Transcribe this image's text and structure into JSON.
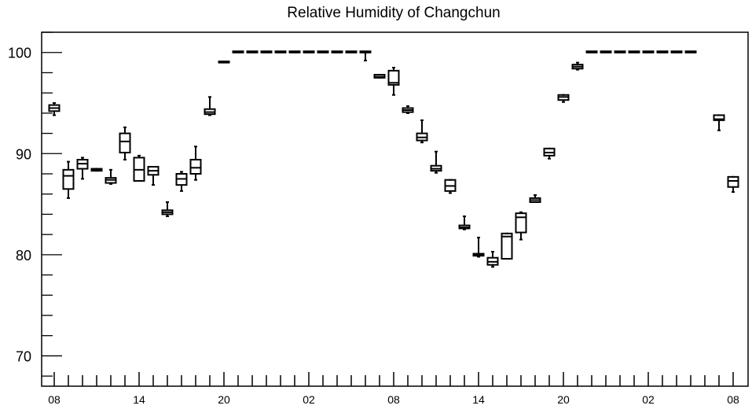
{
  "chart_data": {
    "type": "boxplot",
    "title": "Relative Humidity of Changchun",
    "xlabel": "",
    "ylabel": "",
    "ylim": [
      67,
      102
    ],
    "yticks": [
      70,
      80,
      90,
      100
    ],
    "xticklabels": [
      "08",
      "14",
      "20",
      "02",
      "08",
      "14",
      "20",
      "02",
      "08"
    ],
    "xtick_every": 6,
    "n_slots": 49,
    "grid": false,
    "boxes": [
      {
        "slot": 0,
        "min": 93.8,
        "q1": 94.2,
        "median": 94.5,
        "q3": 94.8,
        "max": 95.0
      },
      {
        "slot": 1,
        "min": 85.6,
        "q1": 86.5,
        "median": 87.8,
        "q3": 88.4,
        "max": 89.2
      },
      {
        "slot": 2,
        "min": 87.5,
        "q1": 88.5,
        "median": 89.0,
        "q3": 89.4,
        "max": 89.6
      },
      {
        "slot": 3,
        "min": 88.3,
        "q1": 88.3,
        "median": 88.4,
        "q3": 88.5,
        "max": 88.5
      },
      {
        "slot": 4,
        "min": 87.0,
        "q1": 87.1,
        "median": 87.4,
        "q3": 87.6,
        "max": 88.4
      },
      {
        "slot": 5,
        "min": 89.4,
        "q1": 90.1,
        "median": 91.2,
        "q3": 92.0,
        "max": 92.6
      },
      {
        "slot": 6,
        "min": 87.3,
        "q1": 87.3,
        "median": 88.4,
        "q3": 89.6,
        "max": 89.8
      },
      {
        "slot": 7,
        "min": 86.9,
        "q1": 87.9,
        "median": 88.3,
        "q3": 88.7,
        "max": 88.7
      },
      {
        "slot": 8,
        "min": 83.8,
        "q1": 84.0,
        "median": 84.2,
        "q3": 84.4,
        "max": 85.2
      },
      {
        "slot": 9,
        "min": 86.3,
        "q1": 86.9,
        "median": 87.5,
        "q3": 88.0,
        "max": 88.2
      },
      {
        "slot": 10,
        "min": 87.4,
        "q1": 88.0,
        "median": 88.6,
        "q3": 89.4,
        "max": 90.7
      },
      {
        "slot": 11,
        "min": 93.8,
        "q1": 93.9,
        "median": 94.1,
        "q3": 94.4,
        "max": 95.6
      },
      {
        "slot": 12,
        "min": 99.0,
        "q1": 99.0,
        "median": 99.0,
        "q3": 99.0,
        "max": 99.0
      },
      {
        "slot": 13,
        "min": 100.0,
        "q1": 100.0,
        "median": 100.0,
        "q3": 100.0,
        "max": 100.0
      },
      {
        "slot": 14,
        "min": 100.0,
        "q1": 100.0,
        "median": 100.0,
        "q3": 100.0,
        "max": 100.0
      },
      {
        "slot": 15,
        "min": 100.0,
        "q1": 100.0,
        "median": 100.0,
        "q3": 100.0,
        "max": 100.0
      },
      {
        "slot": 16,
        "min": 100.0,
        "q1": 100.0,
        "median": 100.0,
        "q3": 100.0,
        "max": 100.0
      },
      {
        "slot": 17,
        "min": 100.0,
        "q1": 100.0,
        "median": 100.0,
        "q3": 100.0,
        "max": 100.0
      },
      {
        "slot": 18,
        "min": 100.0,
        "q1": 100.0,
        "median": 100.0,
        "q3": 100.0,
        "max": 100.0
      },
      {
        "slot": 19,
        "min": 100.0,
        "q1": 100.0,
        "median": 100.0,
        "q3": 100.0,
        "max": 100.0
      },
      {
        "slot": 20,
        "min": 100.0,
        "q1": 100.0,
        "median": 100.0,
        "q3": 100.0,
        "max": 100.0
      },
      {
        "slot": 21,
        "min": 100.0,
        "q1": 100.0,
        "median": 100.0,
        "q3": 100.0,
        "max": 100.0
      },
      {
        "slot": 22,
        "min": 99.2,
        "q1": 100.0,
        "median": 100.0,
        "q3": 100.0,
        "max": 100.0
      },
      {
        "slot": 23,
        "min": 97.5,
        "q1": 97.5,
        "median": 97.6,
        "q3": 97.8,
        "max": 97.8
      },
      {
        "slot": 24,
        "min": 95.8,
        "q1": 96.8,
        "median": 97.0,
        "q3": 98.2,
        "max": 98.5
      },
      {
        "slot": 25,
        "min": 94.0,
        "q1": 94.1,
        "median": 94.3,
        "q3": 94.5,
        "max": 94.7
      },
      {
        "slot": 26,
        "min": 91.1,
        "q1": 91.3,
        "median": 91.6,
        "q3": 92.0,
        "max": 93.3
      },
      {
        "slot": 27,
        "min": 88.1,
        "q1": 88.3,
        "median": 88.5,
        "q3": 88.8,
        "max": 90.2
      },
      {
        "slot": 28,
        "min": 86.1,
        "q1": 86.3,
        "median": 86.8,
        "q3": 87.4,
        "max": 87.4
      },
      {
        "slot": 29,
        "min": 82.5,
        "q1": 82.6,
        "median": 82.7,
        "q3": 82.9,
        "max": 83.8
      },
      {
        "slot": 30,
        "min": 79.8,
        "q1": 79.9,
        "median": 80.0,
        "q3": 80.1,
        "max": 81.7
      },
      {
        "slot": 31,
        "min": 78.8,
        "q1": 79.0,
        "median": 79.3,
        "q3": 79.7,
        "max": 80.3
      },
      {
        "slot": 32,
        "min": 79.6,
        "q1": 79.6,
        "median": 81.8,
        "q3": 82.1,
        "max": 82.1
      },
      {
        "slot": 33,
        "min": 81.5,
        "q1": 82.2,
        "median": 83.7,
        "q3": 84.1,
        "max": 84.2
      },
      {
        "slot": 34,
        "min": 85.2,
        "q1": 85.2,
        "median": 85.4,
        "q3": 85.6,
        "max": 85.9
      },
      {
        "slot": 35,
        "min": 89.5,
        "q1": 89.8,
        "median": 90.1,
        "q3": 90.5,
        "max": 90.5
      },
      {
        "slot": 36,
        "min": 95.1,
        "q1": 95.3,
        "median": 95.6,
        "q3": 95.8,
        "max": 95.8
      },
      {
        "slot": 37,
        "min": 98.3,
        "q1": 98.4,
        "median": 98.6,
        "q3": 98.8,
        "max": 99.0
      },
      {
        "slot": 38,
        "min": 100.0,
        "q1": 100.0,
        "median": 100.0,
        "q3": 100.0,
        "max": 100.0
      },
      {
        "slot": 39,
        "min": 100.0,
        "q1": 100.0,
        "median": 100.0,
        "q3": 100.0,
        "max": 100.0
      },
      {
        "slot": 40,
        "min": 100.0,
        "q1": 100.0,
        "median": 100.0,
        "q3": 100.0,
        "max": 100.0
      },
      {
        "slot": 41,
        "min": 100.0,
        "q1": 100.0,
        "median": 100.0,
        "q3": 100.0,
        "max": 100.0
      },
      {
        "slot": 42,
        "min": 100.0,
        "q1": 100.0,
        "median": 100.0,
        "q3": 100.0,
        "max": 100.0
      },
      {
        "slot": 43,
        "min": 100.0,
        "q1": 100.0,
        "median": 100.0,
        "q3": 100.0,
        "max": 100.0
      },
      {
        "slot": 44,
        "min": 100.0,
        "q1": 100.0,
        "median": 100.0,
        "q3": 100.0,
        "max": 100.0
      },
      {
        "slot": 45,
        "min": 100.0,
        "q1": 100.0,
        "median": 100.0,
        "q3": 100.0,
        "max": 100.0
      },
      {
        "slot": 47,
        "min": 92.3,
        "q1": 93.3,
        "median": 93.4,
        "q3": 93.8,
        "max": 93.8
      },
      {
        "slot": 48,
        "min": 86.2,
        "q1": 86.7,
        "median": 87.3,
        "q3": 87.7,
        "max": 87.7
      }
    ]
  }
}
